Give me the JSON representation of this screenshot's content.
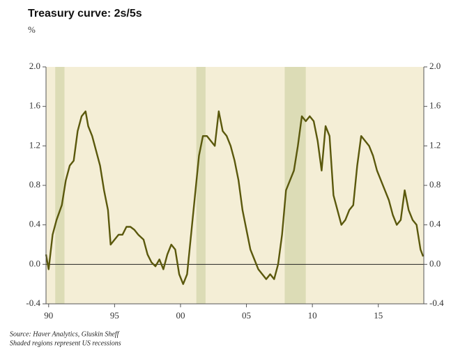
{
  "chart_data": {
    "type": "line",
    "title": "Treasury curve: 2s/5s",
    "unit_label": "%",
    "notes": [
      "Source: Haver Analytics, Gluskin Sheff",
      "Shaded regions represent US recessions"
    ],
    "xlim": [
      1989.8,
      2018.45
    ],
    "ylim": [
      -0.4,
      2.0
    ],
    "y2lim": [
      -0.4,
      2.0
    ],
    "xticks": [
      {
        "value": 1990,
        "label": "90"
      },
      {
        "value": 1995,
        "label": "95"
      },
      {
        "value": 2000,
        "label": "00"
      },
      {
        "value": 2005,
        "label": "05"
      },
      {
        "value": 2010,
        "label": "10"
      },
      {
        "value": 2015,
        "label": "15"
      }
    ],
    "yticks": [
      {
        "value": 2,
        "label": "2.0"
      },
      1.6,
      1.2,
      0.8,
      0.4,
      {
        "value": 0,
        "label": "0.0"
      },
      -0.4
    ],
    "y2ticks": [
      {
        "value": 2,
        "label": "2.0"
      },
      1.6,
      1.2,
      0.8,
      0.4,
      {
        "value": 0,
        "label": "0.0"
      },
      -0.4
    ],
    "background_color": "#f4eed6",
    "recession_color": "#dcdcb6",
    "recessions": [
      [
        1990.5,
        1991.2
      ],
      [
        2001.2,
        2001.9
      ],
      [
        2007.9,
        2009.5
      ]
    ],
    "series": [
      {
        "name": "2s/5s",
        "color": "#5a580c",
        "x": [
          1989.8,
          1990.0,
          1990.3,
          1990.6,
          1991.0,
          1991.3,
          1991.6,
          1991.9,
          1992.2,
          1992.5,
          1992.8,
          1993.0,
          1993.3,
          1993.6,
          1993.9,
          1994.2,
          1994.5,
          1994.7,
          1995.0,
          1995.3,
          1995.6,
          1995.9,
          1996.2,
          1996.5,
          1996.8,
          1997.2,
          1997.5,
          1997.8,
          1998.1,
          1998.4,
          1998.7,
          1999.0,
          1999.3,
          1999.6,
          1999.9,
          2000.2,
          2000.5,
          2000.8,
          2001.1,
          2001.4,
          2001.7,
          2002.0,
          2002.3,
          2002.6,
          2002.9,
          2003.2,
          2003.5,
          2003.8,
          2004.1,
          2004.4,
          2004.7,
          2005.0,
          2005.3,
          2005.6,
          2005.9,
          2006.2,
          2006.5,
          2006.8,
          2007.1,
          2007.4,
          2007.7,
          2008.0,
          2008.3,
          2008.6,
          2008.9,
          2009.2,
          2009.5,
          2009.8,
          2010.1,
          2010.4,
          2010.7,
          2011.0,
          2011.3,
          2011.6,
          2011.9,
          2012.2,
          2012.5,
          2012.8,
          2013.1,
          2013.4,
          2013.7,
          2014.0,
          2014.3,
          2014.6,
          2014.9,
          2015.2,
          2015.5,
          2015.8,
          2016.1,
          2016.4,
          2016.7,
          2017.0,
          2017.3,
          2017.6,
          2017.9,
          2018.2,
          2018.4
        ],
        "values": [
          0.1,
          -0.05,
          0.3,
          0.45,
          0.6,
          0.85,
          1.0,
          1.05,
          1.35,
          1.5,
          1.55,
          1.4,
          1.3,
          1.15,
          1.0,
          0.75,
          0.55,
          0.2,
          0.25,
          0.3,
          0.3,
          0.38,
          0.38,
          0.35,
          0.3,
          0.25,
          0.1,
          0.02,
          -0.02,
          0.05,
          -0.05,
          0.1,
          0.2,
          0.15,
          -0.1,
          -0.2,
          -0.1,
          0.3,
          0.7,
          1.1,
          1.3,
          1.3,
          1.25,
          1.2,
          1.55,
          1.35,
          1.3,
          1.2,
          1.05,
          0.85,
          0.55,
          0.35,
          0.15,
          0.05,
          -0.05,
          -0.1,
          -0.15,
          -0.1,
          -0.15,
          0.0,
          0.3,
          0.75,
          0.85,
          0.95,
          1.2,
          1.5,
          1.45,
          1.5,
          1.45,
          1.25,
          0.95,
          1.4,
          1.3,
          0.7,
          0.55,
          0.4,
          0.45,
          0.55,
          0.6,
          1.0,
          1.3,
          1.25,
          1.2,
          1.1,
          0.95,
          0.85,
          0.75,
          0.65,
          0.5,
          0.4,
          0.45,
          0.75,
          0.55,
          0.45,
          0.4,
          0.15,
          0.08
        ]
      }
    ]
  }
}
